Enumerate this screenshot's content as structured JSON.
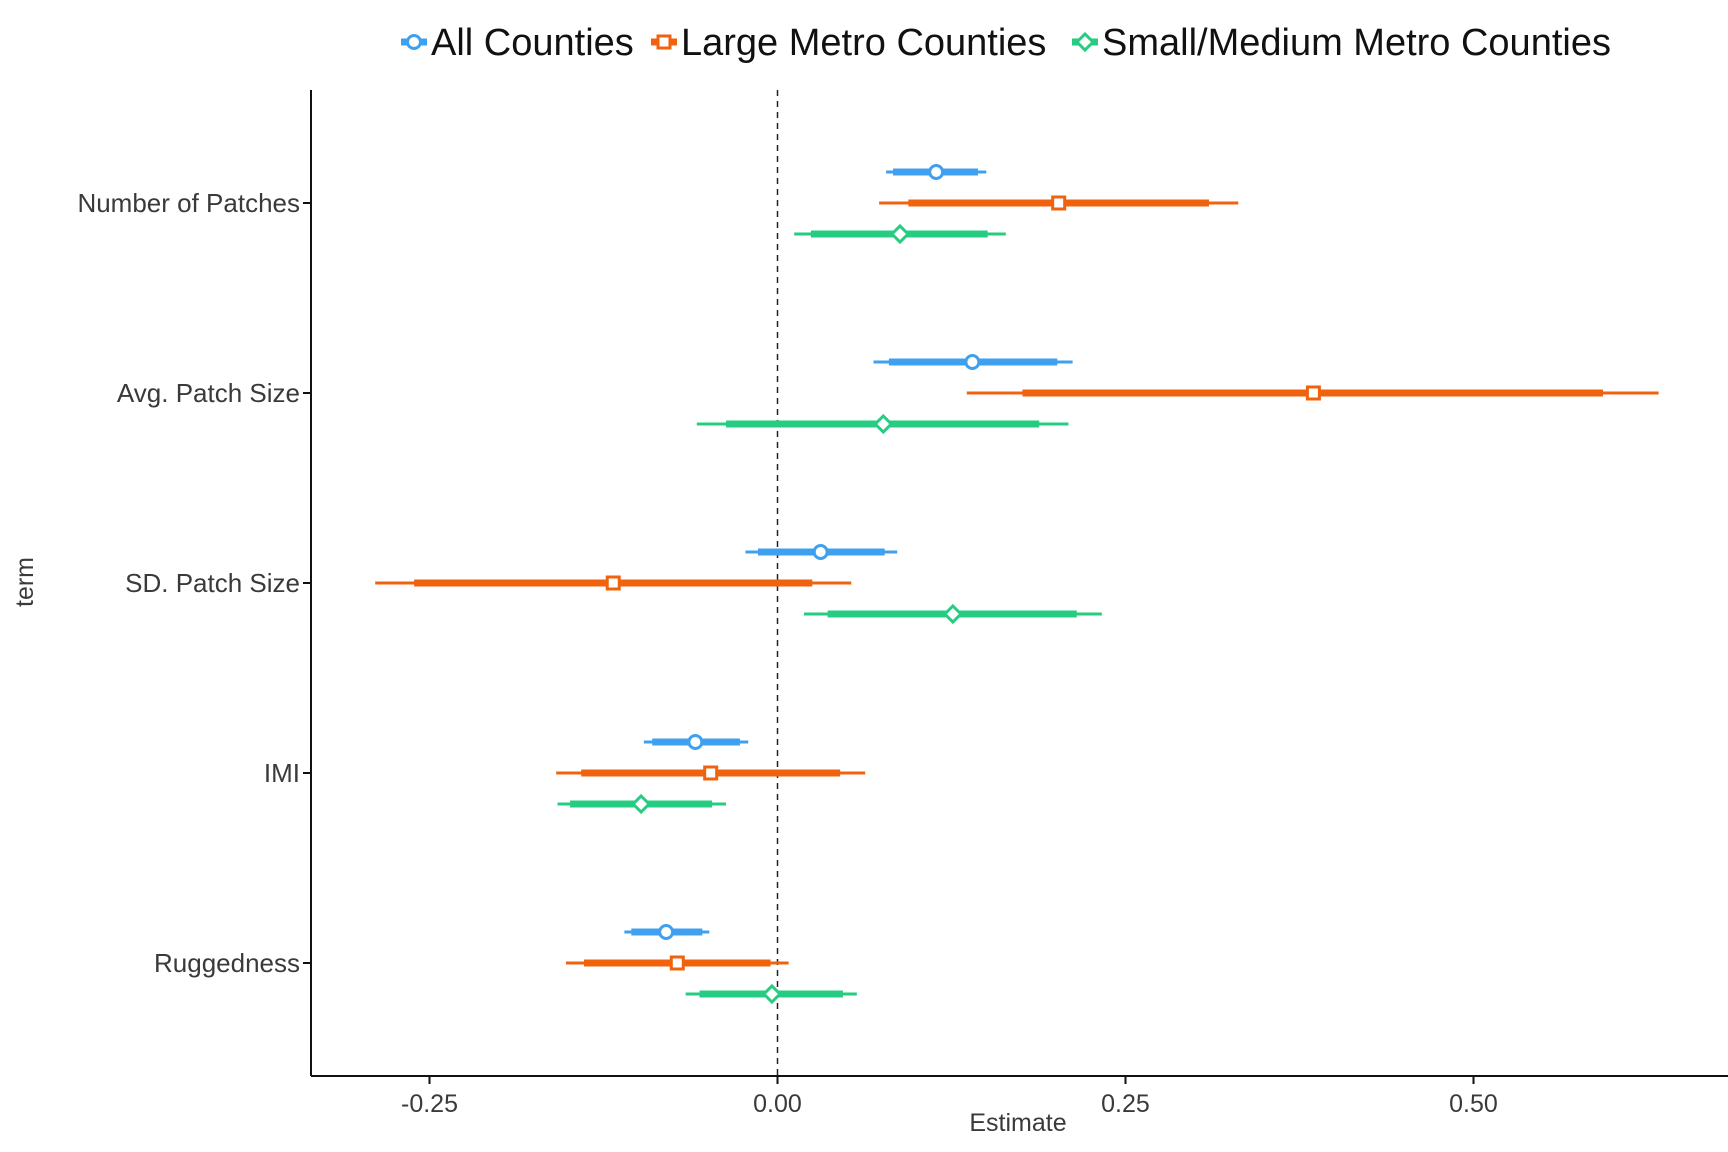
{
  "chart_data": {
    "type": "forest",
    "xlabel": "Estimate",
    "ylabel": "term",
    "xlim": [
      -0.335,
      0.68
    ],
    "xticks": [
      -0.25,
      0.0,
      0.25,
      0.5
    ],
    "xtick_labels": [
      "-0.25",
      "0.00",
      "0.25",
      "0.50"
    ],
    "reference_line": {
      "x": 0,
      "style": "dashed"
    },
    "grid": false,
    "legend_position": "top",
    "terms": [
      "Number of Patches",
      "Avg. Patch Size",
      "SD. Patch Size",
      "IMI",
      "Ruggedness"
    ],
    "series": [
      {
        "name": "All Counties",
        "color": "#3fa0f0",
        "marker": "circle",
        "points": [
          {
            "term": "Number of Patches",
            "estimate": 0.114,
            "inner": [
              0.083,
              0.144
            ],
            "outer": [
              0.078,
              0.15
            ]
          },
          {
            "term": "Avg. Patch Size",
            "estimate": 0.14,
            "inner": [
              0.08,
              0.201
            ],
            "outer": [
              0.069,
              0.212
            ]
          },
          {
            "term": "SD. Patch Size",
            "estimate": 0.031,
            "inner": [
              -0.014,
              0.077
            ],
            "outer": [
              -0.023,
              0.086
            ]
          },
          {
            "term": "IMI",
            "estimate": -0.059,
            "inner": [
              -0.09,
              -0.027
            ],
            "outer": [
              -0.096,
              -0.021
            ]
          },
          {
            "term": "Ruggedness",
            "estimate": -0.08,
            "inner": [
              -0.105,
              -0.054
            ],
            "outer": [
              -0.11,
              -0.049
            ]
          }
        ]
      },
      {
        "name": "Large Metro Counties",
        "color": "#f0620e",
        "marker": "square",
        "points": [
          {
            "term": "Number of Patches",
            "estimate": 0.202,
            "inner": [
              0.094,
              0.31
            ],
            "outer": [
              0.073,
              0.331
            ]
          },
          {
            "term": "Avg. Patch Size",
            "estimate": 0.385,
            "inner": [
              0.176,
              0.593
            ],
            "outer": [
              0.136,
              0.633
            ]
          },
          {
            "term": "SD. Patch Size",
            "estimate": -0.118,
            "inner": [
              -0.261,
              0.025
            ],
            "outer": [
              -0.289,
              0.053
            ]
          },
          {
            "term": "IMI",
            "estimate": -0.048,
            "inner": [
              -0.141,
              0.045
            ],
            "outer": [
              -0.159,
              0.063
            ]
          },
          {
            "term": "Ruggedness",
            "estimate": -0.072,
            "inner": [
              -0.139,
              -0.005
            ],
            "outer": [
              -0.152,
              0.008
            ]
          }
        ]
      },
      {
        "name": "Small/Medium Metro Counties",
        "color": "#26cc82",
        "marker": "diamond",
        "points": [
          {
            "term": "Number of Patches",
            "estimate": 0.088,
            "inner": [
              0.024,
              0.151
            ],
            "outer": [
              0.012,
              0.164
            ]
          },
          {
            "term": "Avg. Patch Size",
            "estimate": 0.076,
            "inner": [
              -0.037,
              0.188
            ],
            "outer": [
              -0.058,
              0.209
            ]
          },
          {
            "term": "SD. Patch Size",
            "estimate": 0.126,
            "inner": [
              0.036,
              0.215
            ],
            "outer": [
              0.019,
              0.233
            ]
          },
          {
            "term": "IMI",
            "estimate": -0.098,
            "inner": [
              -0.149,
              -0.047
            ],
            "outer": [
              -0.158,
              -0.037
            ]
          },
          {
            "term": "Ruggedness",
            "estimate": -0.004,
            "inner": [
              -0.056,
              0.047
            ],
            "outer": [
              -0.066,
              0.057
            ]
          }
        ]
      }
    ]
  }
}
